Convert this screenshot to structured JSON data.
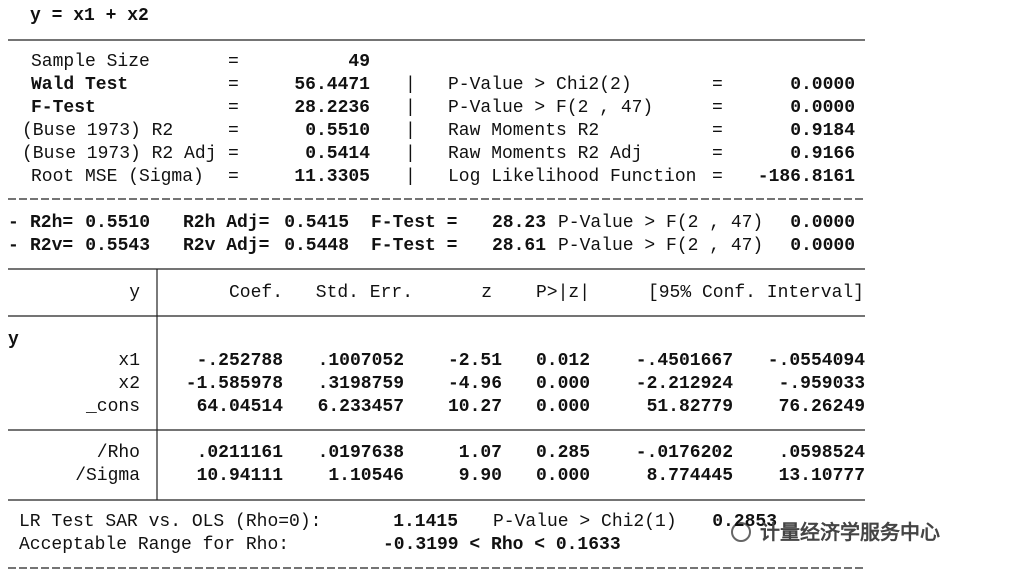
{
  "title": "y = x1 + x2",
  "stats": [
    [
      "Sample Size",
      "=",
      "49"
    ],
    [
      "Wald Test",
      "=",
      "56.4471",
      "|",
      "P-Value > Chi2(2)",
      "=",
      "0.0000"
    ],
    [
      "F-Test",
      "=",
      "28.2236",
      "|",
      "P-Value > F(2 , 47)",
      "=",
      "0.0000"
    ],
    [
      "(Buse 1973) R2",
      "=",
      "0.5510",
      "|",
      "Raw Moments R2",
      "=",
      "0.9184"
    ],
    [
      "(Buse 1973) R2 Adj",
      "=",
      "0.5414",
      "|",
      "Raw Moments R2 Adj",
      "=",
      "0.9166"
    ],
    [
      "Root MSE (Sigma)",
      "=",
      "11.3305",
      "|",
      "Log Likelihood Function",
      "=",
      "-186.8161"
    ]
  ],
  "hetero": [
    [
      "-",
      "R2h=",
      "0.5510",
      "R2h Adj=",
      "0.5415",
      "F-Test =",
      "28.23",
      "P-Value > F(2 , 47)",
      "0.0000"
    ],
    [
      "-",
      "R2v=",
      "0.5543",
      "R2v Adj=",
      "0.5448",
      "F-Test =",
      "28.61",
      "P-Value > F(2 , 47)",
      "0.0000"
    ]
  ],
  "table": {
    "header": [
      "y",
      "Coef.",
      "Std. Err.",
      "z",
      "P>|z|",
      "[95% Conf. Interval]"
    ],
    "group": "y",
    "rows": [
      [
        "x1",
        "-.252788",
        ".1007052",
        "-2.51",
        "0.012",
        "-.4501667",
        "-.0554094"
      ],
      [
        "x2",
        "-1.585978",
        ".3198759",
        "-4.96",
        "0.000",
        "-2.212924",
        "-.959033"
      ],
      [
        "_cons",
        "64.04514",
        "6.233457",
        "10.27",
        "0.000",
        "51.82779",
        "76.26249"
      ],
      [
        "/Rho",
        ".0211161",
        ".0197638",
        "1.07",
        "0.285",
        "-.0176202",
        ".0598524"
      ],
      [
        "/Sigma",
        "10.94111",
        "1.10546",
        "9.90",
        "0.000",
        "8.774445",
        "13.10777"
      ]
    ]
  },
  "footer": [
    [
      "LR Test SAR vs. OLS (Rho=0):",
      "1.1415",
      "P-Value > Chi2(1)",
      "0.2853"
    ],
    [
      "Acceptable Range for Rho:",
      "-0.3199 < Rho < 0.1633"
    ]
  ],
  "watermark": "计量经济学服务中心"
}
